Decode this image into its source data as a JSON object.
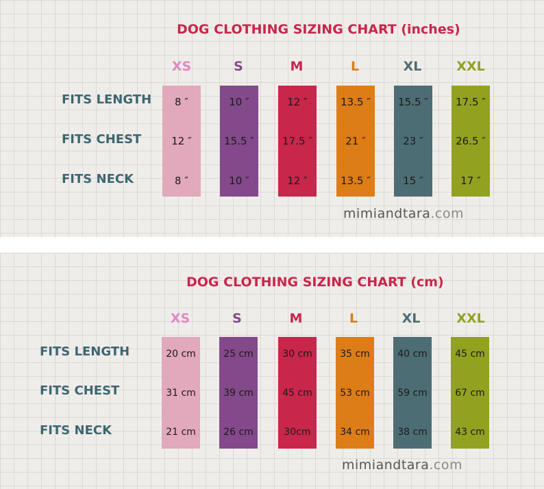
{
  "colors": {
    "xs": "#e2a8bb",
    "s": "#83498a",
    "m": "#c8264a",
    "l": "#dd7d17",
    "xl": "#4d6d75",
    "xxl": "#93a121",
    "xs_label": "#e486c4"
  },
  "inches": {
    "title": "DOG CLOTHING SIZING CHART (inches)",
    "sizes": [
      "XS",
      "S",
      "M",
      "L",
      "XL",
      "XXL"
    ],
    "rows": [
      "FITS LENGTH",
      "FITS CHEST",
      "FITS NECK"
    ],
    "values": [
      [
        "8 ″",
        "10 ″",
        "12 ″",
        "13.5 ″",
        "15.5 ″",
        "17.5 ″"
      ],
      [
        "12 ″",
        "15.5 ″",
        "17.5 ″",
        "21 ″",
        "23 ″",
        "26.5 ″"
      ],
      [
        "8 ″",
        "10 ″",
        "12 ″",
        "13.5 ″",
        "15 ″",
        "17 ″"
      ]
    ],
    "brand_name": "mimiandtara",
    "brand_tld": ".com"
  },
  "cm": {
    "title": "DOG CLOTHING SIZING CHART (cm)",
    "sizes": [
      "XS",
      "S",
      "M",
      "L",
      "XL",
      "XXL"
    ],
    "rows": [
      "FITS LENGTH",
      "FITS CHEST",
      "FITS NECK"
    ],
    "values": [
      [
        "20 cm",
        "25 cm",
        "30 cm",
        "35 cm",
        "40 cm",
        "45 cm"
      ],
      [
        "31 cm",
        "39 cm",
        "45 cm",
        "53 cm",
        "59 cm",
        "67 cm"
      ],
      [
        "21 cm",
        "26 cm",
        "30cm",
        "34 cm",
        "38 cm",
        "43 cm"
      ]
    ],
    "brand_name": "mimiandtara",
    "brand_tld": ".com"
  }
}
